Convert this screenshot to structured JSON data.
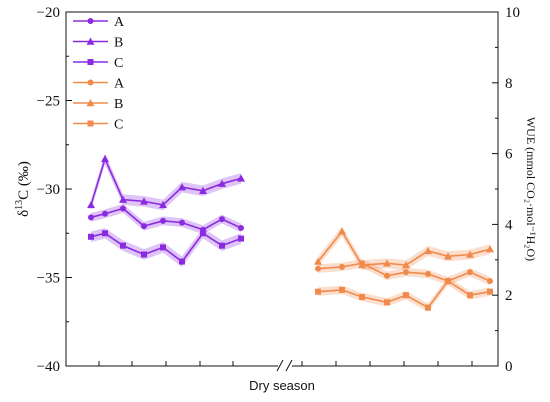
{
  "chart_data": {
    "type": "line",
    "xlabel": "Dry season",
    "ylabel_left": {
      "prefix": "δ",
      "sup": "13",
      "main": "C (‰)"
    },
    "ylabel_right": "WUE (mmol CO₂·mol⁻¹H₂O)",
    "ylim_left": [
      -40,
      -20
    ],
    "ylim_right": [
      0,
      10
    ],
    "yticks_left": [
      -40,
      -35,
      -30,
      -25,
      -20
    ],
    "ytick_labels_left": [
      "−40",
      "−35",
      "−30",
      "−25",
      "−20"
    ],
    "yticks_right": [
      0,
      2,
      4,
      6,
      8,
      10
    ],
    "ytick_labels_right": [
      "0",
      "2",
      "4",
      "6",
      "8",
      "10"
    ],
    "axis_break": true,
    "grid": false,
    "legend_position": "top-left",
    "colors": {
      "delta13c": "#8a2be2",
      "wue": "#f08a4b"
    },
    "left_series": [
      {
        "name": "A",
        "marker": "circle",
        "values": [
          -31.6,
          -31.4,
          -31.1,
          -32.1,
          -31.8,
          -31.9,
          -32.3,
          -31.7,
          -32.2
        ],
        "band": 0.25
      },
      {
        "name": "B",
        "marker": "triangle",
        "values": [
          -30.9,
          -28.3,
          -30.6,
          -30.7,
          -30.9,
          -29.9,
          -30.1,
          -29.7,
          -29.4
        ],
        "band": 0.3
      },
      {
        "name": "C",
        "marker": "square",
        "values": [
          -32.7,
          -32.5,
          -33.2,
          -33.7,
          -33.3,
          -34.1,
          -32.5,
          -33.2,
          -32.8
        ],
        "band": 0.3
      }
    ],
    "right_series": [
      {
        "name": "A",
        "marker": "circle",
        "values": [
          2.75,
          2.8,
          2.9,
          2.55,
          2.65,
          2.6,
          2.4,
          2.65,
          2.4
        ],
        "band": 0.12
      },
      {
        "name": "B",
        "marker": "triangle",
        "values": [
          2.95,
          3.8,
          2.85,
          2.9,
          2.85,
          3.25,
          3.1,
          3.15,
          3.3
        ],
        "band": 0.14
      },
      {
        "name": "C",
        "marker": "square",
        "values": [
          2.1,
          2.15,
          1.95,
          1.8,
          2.0,
          1.65,
          2.4,
          2.0,
          2.1
        ],
        "band": 0.12
      }
    ]
  }
}
